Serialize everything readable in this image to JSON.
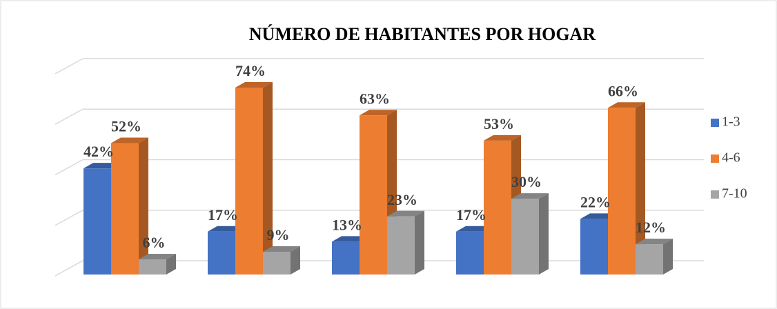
{
  "chart_data": {
    "type": "bar3d",
    "title": "NÚMERO DE HABITANTES POR HOGAR",
    "categories": [
      null,
      null,
      null,
      null,
      null
    ],
    "series": [
      {
        "name": "1-3",
        "color": "#4472c4",
        "values": [
          42,
          17,
          13,
          17,
          22
        ],
        "value_labels": [
          "42%",
          "17%",
          "13%",
          "17%",
          "22%"
        ]
      },
      {
        "name": "4-6",
        "color": "#ed7d31",
        "values": [
          52,
          74,
          63,
          53,
          66
        ],
        "value_labels": [
          "52%",
          "74%",
          "63%",
          "53%",
          "66%"
        ]
      },
      {
        "name": "7-10",
        "color": "#a5a5a5",
        "values": [
          6,
          9,
          23,
          30,
          12
        ],
        "value_labels": [
          "6%",
          "9%",
          "23%",
          "30%",
          "12%"
        ]
      }
    ],
    "ylim": [
      0,
      80
    ],
    "yticks": [
      0,
      20,
      40,
      60,
      80
    ],
    "grid": true,
    "legend": "right"
  }
}
